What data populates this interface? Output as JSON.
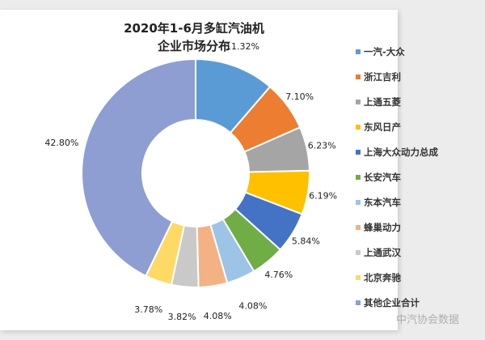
{
  "chart_data": {
    "type": "pie",
    "subtype": "donut",
    "title": [
      "2020年1-6月多缸汽油机",
      "企业市场分布"
    ],
    "categories": [
      "一汽-大众",
      "浙江吉利",
      "上通五菱",
      "东风日产",
      "上海大众动力总成",
      "长安汽车",
      "东本汽车",
      "蜂巢动力",
      "上通武汉",
      "北京奔驰",
      "其他企业合计"
    ],
    "values": [
      11.32,
      7.1,
      6.23,
      6.19,
      5.84,
      4.76,
      4.08,
      4.08,
      3.82,
      3.78,
      42.8
    ],
    "labels": [
      "11.32%",
      "7.10%",
      "6.23%",
      "6.19%",
      "5.84%",
      "4.76%",
      "4.08%",
      "4.08%",
      "3.82%",
      "3.78%",
      "42.80%"
    ],
    "colors": [
      "#5B9BD5",
      "#ED7D31",
      "#A5A5A5",
      "#FFC000",
      "#4472C4",
      "#70AD47",
      "#9DC3E6",
      "#F4B183",
      "#C9C9C9",
      "#FFD966",
      "#8E9ED3"
    ],
    "legend_position": "right"
  },
  "watermark": "中汽协会数据"
}
